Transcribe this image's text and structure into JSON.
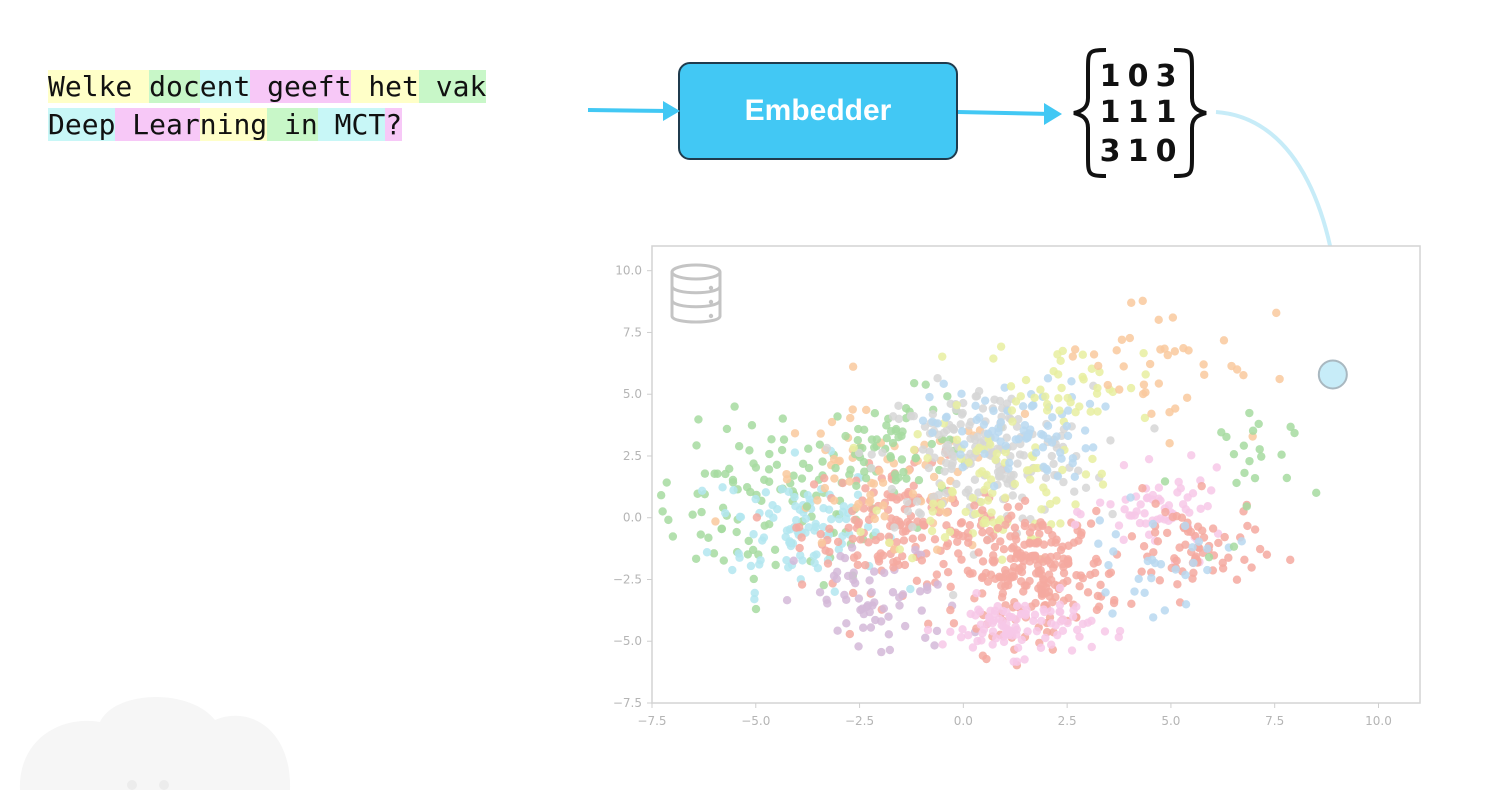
{
  "query": {
    "lines": [
      [
        {
          "text": "Welke",
          "color": "#ffffc8"
        },
        {
          "text": " ",
          "color": "#ffffc8"
        },
        {
          "text": "doc",
          "color": "#c8f7c8"
        },
        {
          "text": "ent",
          "color": "#c8f7f7"
        },
        {
          "text": " ",
          "color": "#f7c8f7"
        },
        {
          "text": "geeft",
          "color": "#f7c8f7"
        },
        {
          "text": " het",
          "color": "#ffffc8"
        },
        {
          "text": " vak",
          "color": "#c8f7c8"
        }
      ],
      [
        {
          "text": "Deep",
          "color": "#c8f7f7"
        },
        {
          "text": " Lear",
          "color": "#f7c8f7"
        },
        {
          "text": "ning",
          "color": "#ffffc8"
        },
        {
          "text": " in",
          "color": "#c8f7c8"
        },
        {
          "text": " MCT",
          "color": "#c8f7f7"
        },
        {
          "text": "?",
          "color": "#f7c8f7"
        }
      ]
    ]
  },
  "embedder": {
    "label": "Embedder",
    "color": "#42c8f4"
  },
  "matrix": {
    "rows": [
      [
        "1",
        "0",
        "3"
      ],
      [
        "1",
        "1",
        "1"
      ],
      [
        "3",
        "1",
        "0"
      ]
    ]
  },
  "arrow_color": "#42c8f4",
  "chart_data": {
    "type": "scatter",
    "xlim": [
      -7.5,
      11.0
    ],
    "ylim": [
      -7.5,
      11.0
    ],
    "x_ticks": [
      "−7.5",
      "−5.0",
      "−2.5",
      "0.0",
      "2.5",
      "5.0",
      "7.5",
      "10.0"
    ],
    "y_ticks": [
      "−7.5",
      "−5.0",
      "−2.5",
      "0.0",
      "2.5",
      "5.0",
      "7.5",
      "10.0"
    ],
    "x_tick_values": [
      -7.5,
      -5.0,
      -2.5,
      0.0,
      2.5,
      5.0,
      7.5,
      10.0
    ],
    "y_tick_values": [
      -7.5,
      -5.0,
      -2.5,
      0.0,
      2.5,
      5.0,
      7.5,
      10.0
    ],
    "grid": false,
    "clusters": [
      {
        "color": "#a6dba0",
        "cx": -4.5,
        "cy": 0.5,
        "sx": 1.6,
        "sy": 1.6,
        "n": 110
      },
      {
        "color": "#b3e6f0",
        "cx": -4.0,
        "cy": -0.3,
        "sx": 1.0,
        "sy": 1.3,
        "n": 95
      },
      {
        "color": "#f4a9a0",
        "cx": -1.5,
        "cy": -0.3,
        "sx": 1.2,
        "sy": 1.3,
        "n": 160
      },
      {
        "color": "#f9c99e",
        "cx": -2.0,
        "cy": 1.2,
        "sx": 1.5,
        "sy": 1.5,
        "n": 70
      },
      {
        "color": "#a6dba0",
        "cx": -1.5,
        "cy": 3.0,
        "sx": 1.0,
        "sy": 1.0,
        "n": 60
      },
      {
        "color": "#d6d6d6",
        "cx": 0.5,
        "cy": 2.5,
        "sx": 1.3,
        "sy": 1.4,
        "n": 190
      },
      {
        "color": "#e8eea0",
        "cx": 0.5,
        "cy": 1.2,
        "sx": 1.2,
        "sy": 1.5,
        "n": 90
      },
      {
        "color": "#b8d8f0",
        "cx": 1.2,
        "cy": 3.5,
        "sx": 1.0,
        "sy": 1.0,
        "n": 80
      },
      {
        "color": "#d4b8d8",
        "cx": -2.0,
        "cy": -3.5,
        "sx": 1.0,
        "sy": 1.2,
        "n": 60
      },
      {
        "color": "#f4a9a0",
        "cx": 1.7,
        "cy": -2.2,
        "sx": 0.9,
        "sy": 1.2,
        "n": 230
      },
      {
        "color": "#f7c8e8",
        "cx": 1.3,
        "cy": -4.4,
        "sx": 0.9,
        "sy": 0.6,
        "n": 100
      },
      {
        "color": "#f7c8e8",
        "cx": 4.8,
        "cy": 0.2,
        "sx": 0.8,
        "sy": 0.8,
        "n": 60
      },
      {
        "color": "#f4a9a0",
        "cx": 5.5,
        "cy": -1.3,
        "sx": 0.8,
        "sy": 1.0,
        "n": 70
      },
      {
        "color": "#b8d8f0",
        "cx": 4.5,
        "cy": -1.8,
        "sx": 1.0,
        "sy": 1.0,
        "n": 30
      },
      {
        "color": "#e8eea0",
        "cx": 2.5,
        "cy": 5.5,
        "sx": 1.0,
        "sy": 0.8,
        "n": 40
      },
      {
        "color": "#f9c99e",
        "cx": 4.8,
        "cy": 6.5,
        "sx": 1.3,
        "sy": 1.5,
        "n": 40
      },
      {
        "color": "#a6dba0",
        "cx": 6.5,
        "cy": 1.5,
        "sx": 0.7,
        "sy": 1.8,
        "n": 22
      }
    ],
    "query_point": {
      "x": 8.9,
      "y": 5.8,
      "color": "#c7ecf8"
    }
  }
}
